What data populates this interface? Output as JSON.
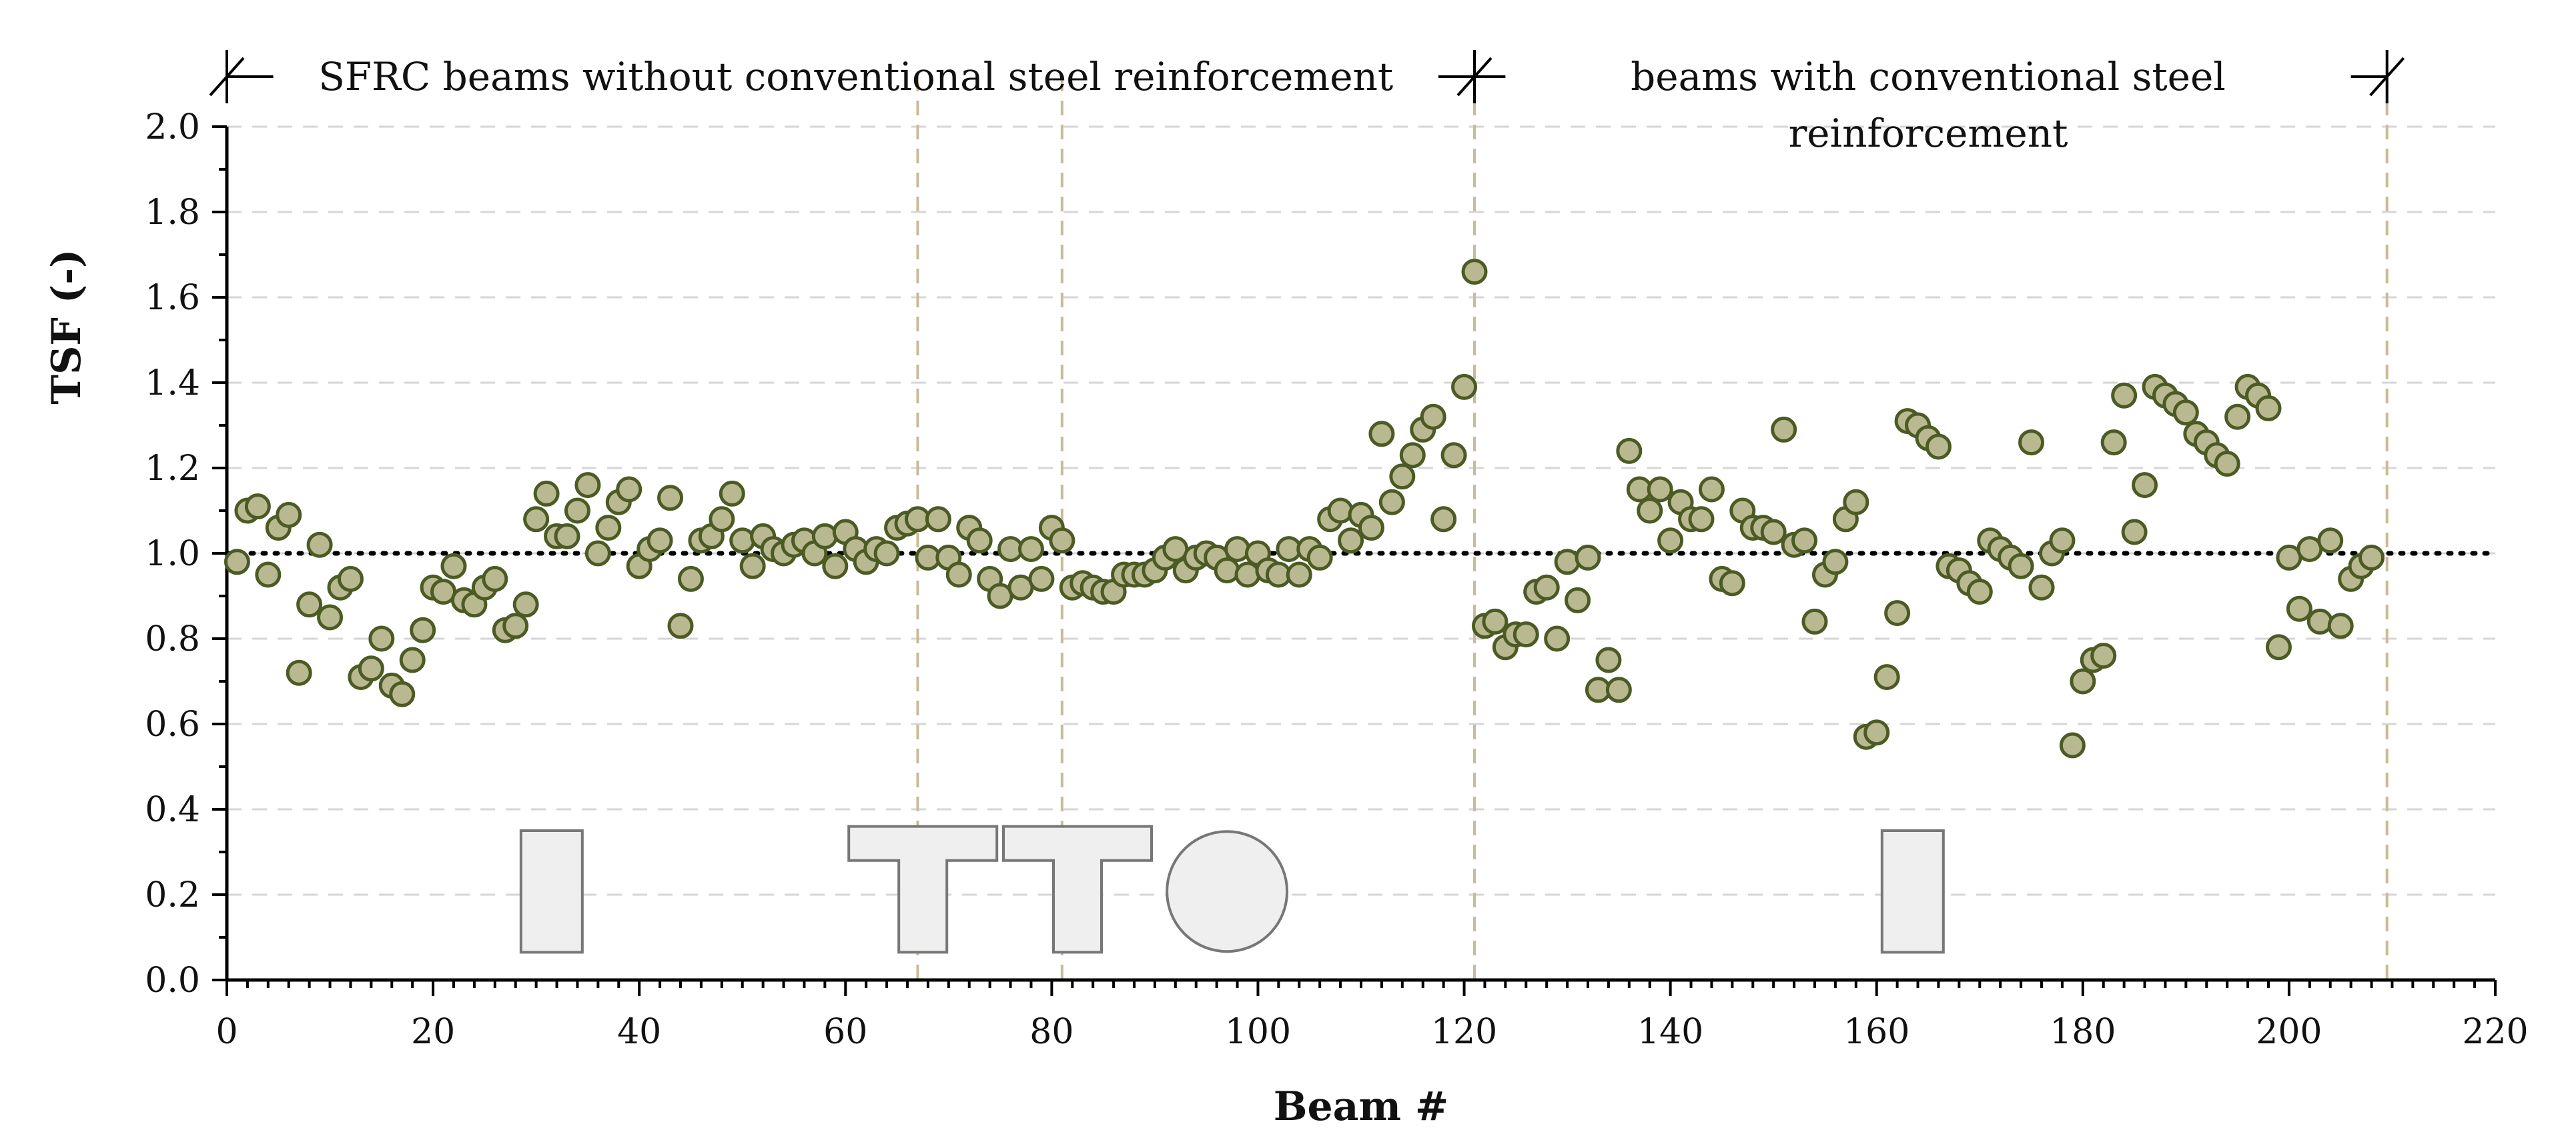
{
  "chart_data": {
    "type": "scatter",
    "title": "",
    "xlabel": "Beam #",
    "ylabel": "TSF (-)",
    "xlim": [
      0,
      220
    ],
    "ylim": [
      0,
      2.0
    ],
    "x_ticks": [
      0,
      20,
      40,
      60,
      80,
      100,
      120,
      140,
      160,
      180,
      200,
      220
    ],
    "y_ticks": [
      0.0,
      0.2,
      0.4,
      0.6,
      0.8,
      1.0,
      1.2,
      1.4,
      1.6,
      1.8,
      2.0
    ],
    "x_tick_labels": [
      "0",
      "20",
      "40",
      "60",
      "80",
      "100",
      "120",
      "140",
      "160",
      "180",
      "200",
      "220"
    ],
    "y_tick_labels": [
      "0.0",
      "0.2",
      "0.4",
      "0.6",
      "0.8",
      "1.0",
      "1.2",
      "1.4",
      "1.6",
      "1.8",
      "2.0"
    ],
    "grid": true,
    "reference_line": {
      "y": 1.0,
      "style": "dotted",
      "color": "#000000"
    },
    "group_dividers_x": [
      67,
      81,
      121,
      209.5
    ],
    "annotations": {
      "group1": "SFRC beams without conventional steel reinforcement",
      "group2_line1": "beams with conventional steel",
      "group2_line2": "reinforcement"
    },
    "cross_sections": [
      {
        "shape": "rectangle",
        "x_center": 31.5
      },
      {
        "shape": "T-section",
        "x_center": 67.5
      },
      {
        "shape": "T-section",
        "x_center": 82.5
      },
      {
        "shape": "circle",
        "x_center": 97
      },
      {
        "shape": "rectangle",
        "x_center": 163.5
      }
    ],
    "series": [
      {
        "name": "TSF",
        "marker_fill": "#b9b991",
        "marker_edge": "#4c5a24",
        "points": [
          [
            1,
            0.98
          ],
          [
            2,
            1.1
          ],
          [
            3,
            1.11
          ],
          [
            4,
            0.95
          ],
          [
            5,
            1.06
          ],
          [
            6,
            1.09
          ],
          [
            7,
            0.72
          ],
          [
            8,
            0.88
          ],
          [
            9,
            1.02
          ],
          [
            10,
            0.85
          ],
          [
            11,
            0.92
          ],
          [
            12,
            0.94
          ],
          [
            13,
            0.71
          ],
          [
            14,
            0.73
          ],
          [
            15,
            0.8
          ],
          [
            16,
            0.69
          ],
          [
            17,
            0.67
          ],
          [
            18,
            0.75
          ],
          [
            19,
            0.82
          ],
          [
            20,
            0.92
          ],
          [
            21,
            0.91
          ],
          [
            22,
            0.97
          ],
          [
            23,
            0.89
          ],
          [
            24,
            0.88
          ],
          [
            25,
            0.92
          ],
          [
            26,
            0.94
          ],
          [
            27,
            0.82
          ],
          [
            28,
            0.83
          ],
          [
            29,
            0.88
          ],
          [
            30,
            1.08
          ],
          [
            31,
            1.14
          ],
          [
            32,
            1.04
          ],
          [
            33,
            1.04
          ],
          [
            34,
            1.1
          ],
          [
            35,
            1.16
          ],
          [
            36,
            1.0
          ],
          [
            37,
            1.06
          ],
          [
            38,
            1.12
          ],
          [
            39,
            1.15
          ],
          [
            40,
            0.97
          ],
          [
            41,
            1.01
          ],
          [
            42,
            1.03
          ],
          [
            43,
            1.13
          ],
          [
            44,
            0.83
          ],
          [
            45,
            0.94
          ],
          [
            46,
            1.03
          ],
          [
            47,
            1.04
          ],
          [
            48,
            1.08
          ],
          [
            49,
            1.14
          ],
          [
            50,
            1.03
          ],
          [
            51,
            0.97
          ],
          [
            52,
            1.04
          ],
          [
            53,
            1.01
          ],
          [
            54,
            1.0
          ],
          [
            55,
            1.02
          ],
          [
            56,
            1.03
          ],
          [
            57,
            1.0
          ],
          [
            58,
            1.04
          ],
          [
            59,
            0.97
          ],
          [
            60,
            1.05
          ],
          [
            61,
            1.01
          ],
          [
            62,
            0.98
          ],
          [
            63,
            1.01
          ],
          [
            64,
            1.0
          ],
          [
            65,
            1.06
          ],
          [
            66,
            1.07
          ],
          [
            67,
            1.08
          ],
          [
            68,
            0.99
          ],
          [
            69,
            1.08
          ],
          [
            70,
            0.99
          ],
          [
            71,
            0.95
          ],
          [
            72,
            1.06
          ],
          [
            73,
            1.03
          ],
          [
            74,
            0.94
          ],
          [
            75,
            0.9
          ],
          [
            76,
            1.01
          ],
          [
            77,
            0.92
          ],
          [
            78,
            1.01
          ],
          [
            79,
            0.94
          ],
          [
            80,
            1.06
          ],
          [
            81,
            1.03
          ],
          [
            82,
            0.92
          ],
          [
            83,
            0.93
          ],
          [
            84,
            0.92
          ],
          [
            85,
            0.91
          ],
          [
            86,
            0.91
          ],
          [
            87,
            0.95
          ],
          [
            88,
            0.95
          ],
          [
            89,
            0.95
          ],
          [
            90,
            0.96
          ],
          [
            91,
            0.99
          ],
          [
            92,
            1.01
          ],
          [
            93,
            0.96
          ],
          [
            94,
            0.99
          ],
          [
            95,
            1.0
          ],
          [
            96,
            0.99
          ],
          [
            97,
            0.96
          ],
          [
            98,
            1.01
          ],
          [
            99,
            0.95
          ],
          [
            100,
            1.0
          ],
          [
            101,
            0.96
          ],
          [
            102,
            0.95
          ],
          [
            103,
            1.01
          ],
          [
            104,
            0.95
          ],
          [
            105,
            1.01
          ],
          [
            106,
            0.99
          ],
          [
            107,
            1.08
          ],
          [
            108,
            1.1
          ],
          [
            109,
            1.03
          ],
          [
            110,
            1.09
          ],
          [
            111,
            1.06
          ],
          [
            112,
            1.28
          ],
          [
            113,
            1.12
          ],
          [
            114,
            1.18
          ],
          [
            115,
            1.23
          ],
          [
            116,
            1.29
          ],
          [
            117,
            1.32
          ],
          [
            118,
            1.08
          ],
          [
            119,
            1.23
          ],
          [
            120,
            1.39
          ],
          [
            121,
            1.66
          ],
          [
            122,
            0.83
          ],
          [
            123,
            0.84
          ],
          [
            124,
            0.78
          ],
          [
            125,
            0.81
          ],
          [
            126,
            0.81
          ],
          [
            127,
            0.91
          ],
          [
            128,
            0.92
          ],
          [
            129,
            0.8
          ],
          [
            130,
            0.98
          ],
          [
            131,
            0.89
          ],
          [
            132,
            0.99
          ],
          [
            133,
            0.68
          ],
          [
            134,
            0.75
          ],
          [
            135,
            0.68
          ],
          [
            136,
            1.24
          ],
          [
            137,
            1.15
          ],
          [
            138,
            1.1
          ],
          [
            139,
            1.15
          ],
          [
            140,
            1.03
          ],
          [
            141,
            1.12
          ],
          [
            142,
            1.08
          ],
          [
            143,
            1.08
          ],
          [
            144,
            1.15
          ],
          [
            145,
            0.94
          ],
          [
            146,
            0.93
          ],
          [
            147,
            1.1
          ],
          [
            148,
            1.06
          ],
          [
            149,
            1.06
          ],
          [
            150,
            1.05
          ],
          [
            151,
            1.29
          ],
          [
            152,
            1.02
          ],
          [
            153,
            1.03
          ],
          [
            154,
            0.84
          ],
          [
            155,
            0.95
          ],
          [
            156,
            0.98
          ],
          [
            157,
            1.08
          ],
          [
            158,
            1.12
          ],
          [
            159,
            0.57
          ],
          [
            160,
            0.58
          ],
          [
            161,
            0.71
          ],
          [
            162,
            0.86
          ],
          [
            163,
            1.31
          ],
          [
            164,
            1.3
          ],
          [
            165,
            1.27
          ],
          [
            166,
            1.25
          ],
          [
            167,
            0.97
          ],
          [
            168,
            0.96
          ],
          [
            169,
            0.93
          ],
          [
            170,
            0.91
          ],
          [
            171,
            1.03
          ],
          [
            172,
            1.01
          ],
          [
            173,
            0.99
          ],
          [
            174,
            0.97
          ],
          [
            175,
            1.26
          ],
          [
            176,
            0.92
          ],
          [
            177,
            1.0
          ],
          [
            178,
            1.03
          ],
          [
            179,
            0.55
          ],
          [
            180,
            0.7
          ],
          [
            181,
            0.75
          ],
          [
            182,
            0.76
          ],
          [
            183,
            1.26
          ],
          [
            184,
            1.37
          ],
          [
            185,
            1.05
          ],
          [
            186,
            1.16
          ],
          [
            187,
            1.39
          ],
          [
            188,
            1.37
          ],
          [
            189,
            1.35
          ],
          [
            190,
            1.33
          ],
          [
            191,
            1.28
          ],
          [
            192,
            1.26
          ],
          [
            193,
            1.23
          ],
          [
            194,
            1.21
          ],
          [
            195,
            1.32
          ],
          [
            196,
            1.39
          ],
          [
            197,
            1.37
          ],
          [
            198,
            1.34
          ],
          [
            199,
            0.78
          ],
          [
            200,
            0.99
          ],
          [
            201,
            0.87
          ],
          [
            202,
            1.01
          ],
          [
            203,
            0.84
          ],
          [
            204,
            1.03
          ],
          [
            205,
            0.83
          ],
          [
            206,
            0.94
          ],
          [
            207,
            0.97
          ],
          [
            208,
            0.99
          ]
        ]
      }
    ]
  }
}
